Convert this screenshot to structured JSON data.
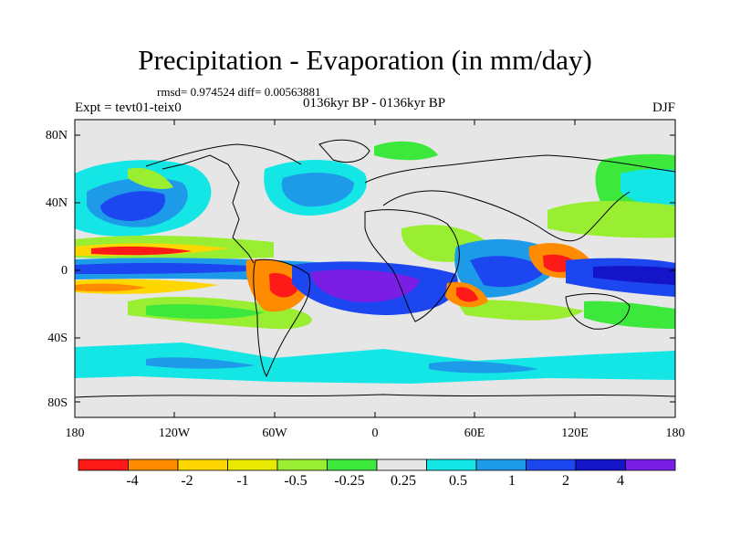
{
  "title": "Precipitation - Evaporation (in mm/day)",
  "stats": "rmsd= 0.974524  diff= 0.00563881",
  "experiment": "Expt = tevt01-teix0",
  "subtitle": "0136kyr BP - 0136kyr BP",
  "season": "DJF",
  "lat_ticks": [
    "80N",
    "40N",
    "0",
    "40S",
    "80S"
  ],
  "lon_ticks": [
    "180",
    "120W",
    "60W",
    "0",
    "60E",
    "120E",
    "180"
  ],
  "colorbar": {
    "colors": [
      "#ff1a1a",
      "#ff8c00",
      "#ffd700",
      "#e8e800",
      "#9aee32",
      "#3ce83c",
      "#e6e6e6",
      "#14e6e6",
      "#1e9be8",
      "#1c46f0",
      "#1414c8",
      "#7a1ee6"
    ],
    "labels": [
      "-4",
      "-2",
      "-1",
      "-0.5",
      "-0.25",
      "0.25",
      "0.5",
      "1",
      "2",
      "4"
    ]
  }
}
